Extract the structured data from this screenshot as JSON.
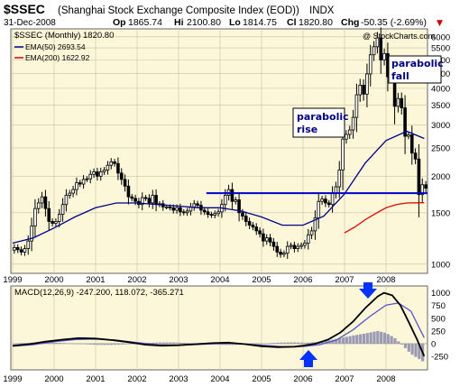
{
  "header": {
    "symbol": "$SSEC",
    "name": "(Shanghai Stock Exchange Composite Index (EOD))",
    "exchange": "INDX",
    "date": "31-Dec-2008",
    "op_label": "Op",
    "op": "1865.74",
    "hi_label": "Hi",
    "hi": "2100.80",
    "lo_label": "Lo",
    "lo": "1814.75",
    "cl_label": "Cl",
    "cl": "1820.80",
    "chg_label": "Chg",
    "chg": "-50.35 (-2.69%)",
    "chg_arrow": "▼",
    "watermark": "@ StockCharts.com"
  },
  "legend": {
    "price": "$SSEC (Monthly) 1820.80",
    "ema50": "EMA(50) 2693.54",
    "ema200": "EMA(200) 1622.92"
  },
  "macd_label": "MACD(12,26,9) -247.200, 118.072, -365.271",
  "annotations": {
    "rise": [
      "parabolic",
      "rise"
    ],
    "fall": [
      "parabolic",
      "fall"
    ]
  },
  "colors": {
    "panel_bg": "#fcf7d8",
    "ema50": "#00008b",
    "ema200": "#e00000",
    "hline": "#0000cc",
    "arrow": "#0033ff",
    "macd_line": "#000000",
    "signal_line": "#5555cc",
    "hist": "#9a9ab4",
    "chg_neg": "#cc0000"
  },
  "chart_data": [
    {
      "type": "candlestick",
      "title": "$SSEC (Shanghai Stock Exchange Composite Index (EOD)) INDX",
      "scale": "log",
      "ylim": [
        950,
        6300
      ],
      "y_ticks": [
        1000,
        1500,
        2000,
        2500,
        3000,
        3500,
        4000,
        4500,
        5000,
        5500,
        6000
      ],
      "x_ticks": [
        "1999",
        "2000",
        "2001",
        "2002",
        "2003",
        "2004",
        "2005",
        "2006",
        "2007",
        "2008"
      ],
      "x_range_years": [
        1999.0,
        2009.0
      ],
      "horizontal_line": 1750,
      "series": [
        {
          "name": "$SSEC (Monthly)",
          "ohlc_close": [
            1140,
            1120,
            1100,
            1130,
            1200,
            1350,
            1550,
            1620,
            1700,
            1550,
            1400,
            1380,
            1400,
            1480,
            1600,
            1720,
            1750,
            1800,
            1900,
            1880,
            1950,
            1960,
            2030,
            2070,
            2000,
            2070,
            2100,
            2180,
            2240,
            2210,
            2050,
            1950,
            1850,
            1700,
            1680,
            1640,
            1600,
            1690,
            1680,
            1620,
            1720,
            1600,
            1610,
            1570,
            1570,
            1560,
            1530,
            1560,
            1510,
            1500,
            1520,
            1570,
            1610,
            1590,
            1530,
            1510,
            1480,
            1470,
            1490,
            1510,
            1600,
            1720,
            1800,
            1640,
            1660,
            1500,
            1460,
            1400,
            1360,
            1340,
            1300,
            1270,
            1200,
            1230,
            1190,
            1150,
            1100,
            1080,
            1090,
            1150,
            1160,
            1130,
            1150,
            1160,
            1180,
            1260,
            1300,
            1440,
            1640,
            1670,
            1620,
            1600,
            1750,
            1840,
            2100,
            2680,
            2780,
            2880,
            3180,
            3800,
            4100,
            3820,
            4480,
            5210,
            5550,
            5950,
            5000,
            5260,
            4380,
            4350,
            3470,
            3690,
            3430,
            2740,
            2770,
            2400,
            2290,
            1730,
            1870,
            1820
          ]
        },
        {
          "name": "EMA(50)",
          "values": [
            [
              1999.0,
              1180
            ],
            [
              1999.5,
              1230
            ],
            [
              2000.0,
              1330
            ],
            [
              2000.5,
              1450
            ],
            [
              2001.0,
              1560
            ],
            [
              2001.5,
              1620
            ],
            [
              2002.0,
              1620
            ],
            [
              2002.5,
              1600
            ],
            [
              2003.0,
              1580
            ],
            [
              2003.5,
              1560
            ],
            [
              2004.0,
              1560
            ],
            [
              2004.5,
              1520
            ],
            [
              2005.0,
              1450
            ],
            [
              2005.5,
              1360
            ],
            [
              2006.0,
              1360
            ],
            [
              2006.5,
              1460
            ],
            [
              2007.0,
              1740
            ],
            [
              2007.5,
              2220
            ],
            [
              2008.0,
              2650
            ],
            [
              2008.5,
              2850
            ],
            [
              2008.92,
              2693.54
            ]
          ]
        },
        {
          "name": "EMA(200)",
          "values": [
            [
              2007.0,
              1280
            ],
            [
              2007.25,
              1340
            ],
            [
              2007.5,
              1420
            ],
            [
              2007.75,
              1490
            ],
            [
              2008.0,
              1560
            ],
            [
              2008.25,
              1600
            ],
            [
              2008.5,
              1620
            ],
            [
              2008.92,
              1622.92
            ]
          ]
        }
      ]
    },
    {
      "type": "line",
      "title": "MACD(12,26,9) -247.200, 118.072, -365.271",
      "ylim": [
        -480,
        1100
      ],
      "y_ticks": [
        1000,
        750,
        500,
        250,
        0,
        -250
      ],
      "x_ticks": [
        "1999",
        "2000",
        "2001",
        "2002",
        "2003",
        "2004",
        "2005",
        "2006",
        "2007",
        "2008"
      ],
      "x_range_years": [
        1999.0,
        2009.0
      ],
      "series": [
        {
          "name": "MACD",
          "values": [
            [
              1999.0,
              -40
            ],
            [
              1999.4,
              -10
            ],
            [
              1999.8,
              40
            ],
            [
              2000.2,
              80
            ],
            [
              2000.6,
              110
            ],
            [
              2001.0,
              100
            ],
            [
              2001.4,
              70
            ],
            [
              2001.8,
              30
            ],
            [
              2002.2,
              -20
            ],
            [
              2002.6,
              -40
            ],
            [
              2003.0,
              -30
            ],
            [
              2003.4,
              -10
            ],
            [
              2003.8,
              10
            ],
            [
              2004.2,
              20
            ],
            [
              2004.6,
              -10
            ],
            [
              2005.0,
              -50
            ],
            [
              2005.4,
              -70
            ],
            [
              2005.8,
              -60
            ],
            [
              2006.0,
              -40
            ],
            [
              2006.3,
              0
            ],
            [
              2006.6,
              80
            ],
            [
              2006.9,
              220
            ],
            [
              2007.2,
              430
            ],
            [
              2007.5,
              700
            ],
            [
              2007.8,
              930
            ],
            [
              2007.95,
              1000
            ],
            [
              2008.15,
              950
            ],
            [
              2008.35,
              750
            ],
            [
              2008.55,
              420
            ],
            [
              2008.75,
              80
            ],
            [
              2008.92,
              -247.2
            ]
          ]
        },
        {
          "name": "Signal",
          "values": [
            [
              1999.0,
              -50
            ],
            [
              1999.5,
              -20
            ],
            [
              2000.0,
              40
            ],
            [
              2000.5,
              80
            ],
            [
              2001.0,
              90
            ],
            [
              2001.5,
              70
            ],
            [
              2002.0,
              20
            ],
            [
              2002.5,
              -20
            ],
            [
              2003.0,
              -30
            ],
            [
              2003.5,
              -15
            ],
            [
              2004.0,
              5
            ],
            [
              2004.5,
              0
            ],
            [
              2005.0,
              -30
            ],
            [
              2005.5,
              -55
            ],
            [
              2006.0,
              -55
            ],
            [
              2006.4,
              -20
            ],
            [
              2006.8,
              70
            ],
            [
              2007.2,
              270
            ],
            [
              2007.6,
              530
            ],
            [
              2008.0,
              760
            ],
            [
              2008.3,
              800
            ],
            [
              2008.6,
              640
            ],
            [
              2008.92,
              118.072
            ]
          ]
        },
        {
          "name": "Histogram",
          "values": [
            [
              2006.0,
              15
            ],
            [
              2006.3,
              30
            ],
            [
              2006.6,
              60
            ],
            [
              2006.9,
              110
            ],
            [
              2007.2,
              160
            ],
            [
              2007.5,
              200
            ],
            [
              2007.8,
              250
            ],
            [
              2008.0,
              210
            ],
            [
              2008.2,
              120
            ],
            [
              2008.4,
              -30
            ],
            [
              2008.6,
              -200
            ],
            [
              2008.92,
              -365.271
            ]
          ]
        }
      ]
    }
  ]
}
